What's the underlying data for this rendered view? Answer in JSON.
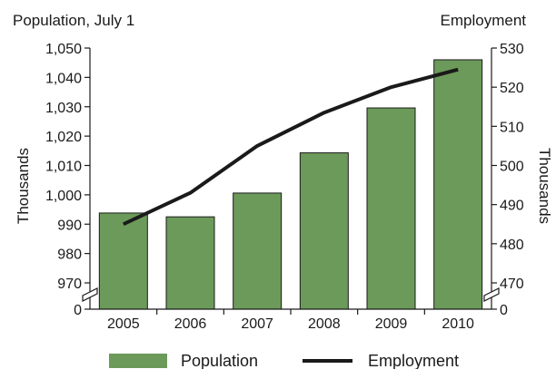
{
  "chart_data": {
    "type": "bar",
    "categories": [
      "2005",
      "2006",
      "2007",
      "2008",
      "2009",
      "2010"
    ],
    "series": [
      {
        "name": "Population",
        "kind": "bar",
        "axis": "left",
        "color": "#6c9a5a",
        "values": [
          993.8,
          992.5,
          1000.6,
          1014.3,
          1029.6,
          1046.0
        ]
      },
      {
        "name": "Employment",
        "kind": "line",
        "axis": "right",
        "color": "#1a1a1a",
        "values": [
          485.0,
          493.0,
          505.0,
          513.5,
          520.0,
          524.5
        ]
      }
    ],
    "left_axis": {
      "title": "Population, July 1",
      "label": "Thousands",
      "ticks": [
        970,
        980,
        990,
        1000,
        1010,
        1020,
        1030,
        1040,
        1050
      ],
      "tick_labels": [
        "970",
        "980",
        "990",
        "1,000",
        "1,010",
        "1,020",
        "1,030",
        "1,040",
        "1,050"
      ],
      "break_value": "0",
      "ylim": [
        970,
        1050
      ]
    },
    "right_axis": {
      "title": "Employment",
      "label": "Thousands",
      "ticks": [
        470,
        480,
        490,
        500,
        510,
        520,
        530
      ],
      "tick_labels": [
        "470",
        "480",
        "490",
        "500",
        "510",
        "520",
        "530"
      ],
      "break_value": "0",
      "ylim": [
        465,
        530
      ]
    },
    "legend": {
      "position": "bottom",
      "items": [
        {
          "label": "Population",
          "kind": "bar"
        },
        {
          "label": "Employment",
          "kind": "line"
        }
      ]
    },
    "grid": false
  }
}
